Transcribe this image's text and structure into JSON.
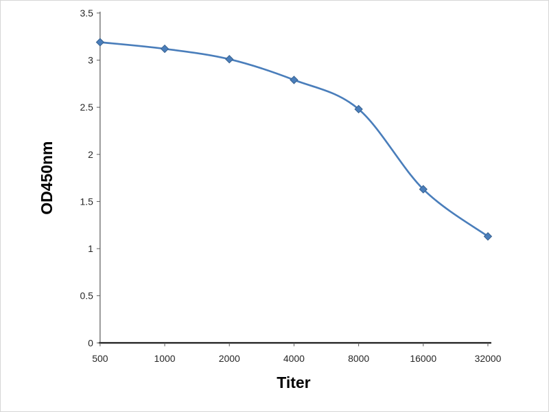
{
  "figure": {
    "description": "ELISA antibody titration curve"
  },
  "chart_data": {
    "type": "line",
    "title": "",
    "xlabel": "Titer",
    "ylabel": "OD450nm",
    "categories": [
      "500",
      "1000",
      "2000",
      "4000",
      "8000",
      "16000",
      "32000"
    ],
    "values": [
      3.19,
      3.12,
      3.01,
      2.79,
      2.48,
      1.63,
      1.13
    ],
    "series": [
      {
        "name": "OD450nm",
        "values": [
          3.19,
          3.12,
          3.01,
          2.79,
          2.48,
          1.63,
          1.13
        ]
      }
    ],
    "ylim": [
      0,
      3.5
    ],
    "ytick_values": [
      0,
      0.5,
      1,
      1.5,
      2,
      2.5,
      3,
      3.5
    ],
    "ytick_labels": [
      "0",
      "0.5",
      "1",
      "1.5",
      "2",
      "2.5",
      "3",
      "3.5"
    ],
    "x_axis_scale": "categorical (doubling dilution)",
    "grid": false,
    "legend_position": "none",
    "marker_shape": "diamond",
    "line_color": "#4a7ebb",
    "marker_color": "#4a7ebb",
    "marker_edge_color": "#38618f",
    "axis_line_color": "#262626",
    "minor_axis_color": "#595959",
    "background_color": "#ffffff"
  }
}
